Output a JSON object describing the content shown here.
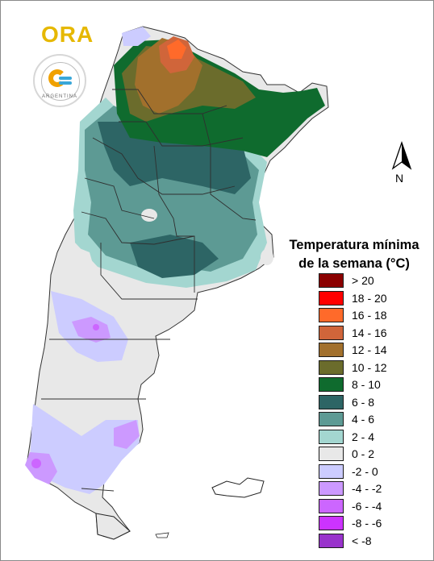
{
  "logo": {
    "ora_text": "ORA",
    "smn_word": "ARGENTINA"
  },
  "north_label": "N",
  "legend": {
    "title": "Temperatura mínima de la semana (°C)",
    "items": [
      {
        "label": "> 20",
        "color": "#8b0000"
      },
      {
        "label": "18 - 20",
        "color": "#ff0000"
      },
      {
        "label": "16 - 18",
        "color": "#ff6a2a"
      },
      {
        "label": "14 - 16",
        "color": "#d0653a"
      },
      {
        "label": "12 - 14",
        "color": "#a2702c"
      },
      {
        "label": "10 - 12",
        "color": "#6b6c2c"
      },
      {
        "label": "8 - 10",
        "color": "#0f6b2e"
      },
      {
        "label": "6 - 8",
        "color": "#2d6565"
      },
      {
        "label": "4 - 6",
        "color": "#5d9a94"
      },
      {
        "label": "2 - 4",
        "color": "#a3d6d0"
      },
      {
        "label": "0 - 2",
        "color": "#e8e8e8"
      },
      {
        "label": "-2 - 0",
        "color": "#ccccff"
      },
      {
        "label": "-4 - -2",
        "color": "#cc99ff"
      },
      {
        "label": "-6 - -4",
        "color": "#cc66ff"
      },
      {
        "label": "-8 - -6",
        "color": "#cc33ff"
      },
      {
        "label": "< -8",
        "color": "#9933cc"
      }
    ]
  }
}
